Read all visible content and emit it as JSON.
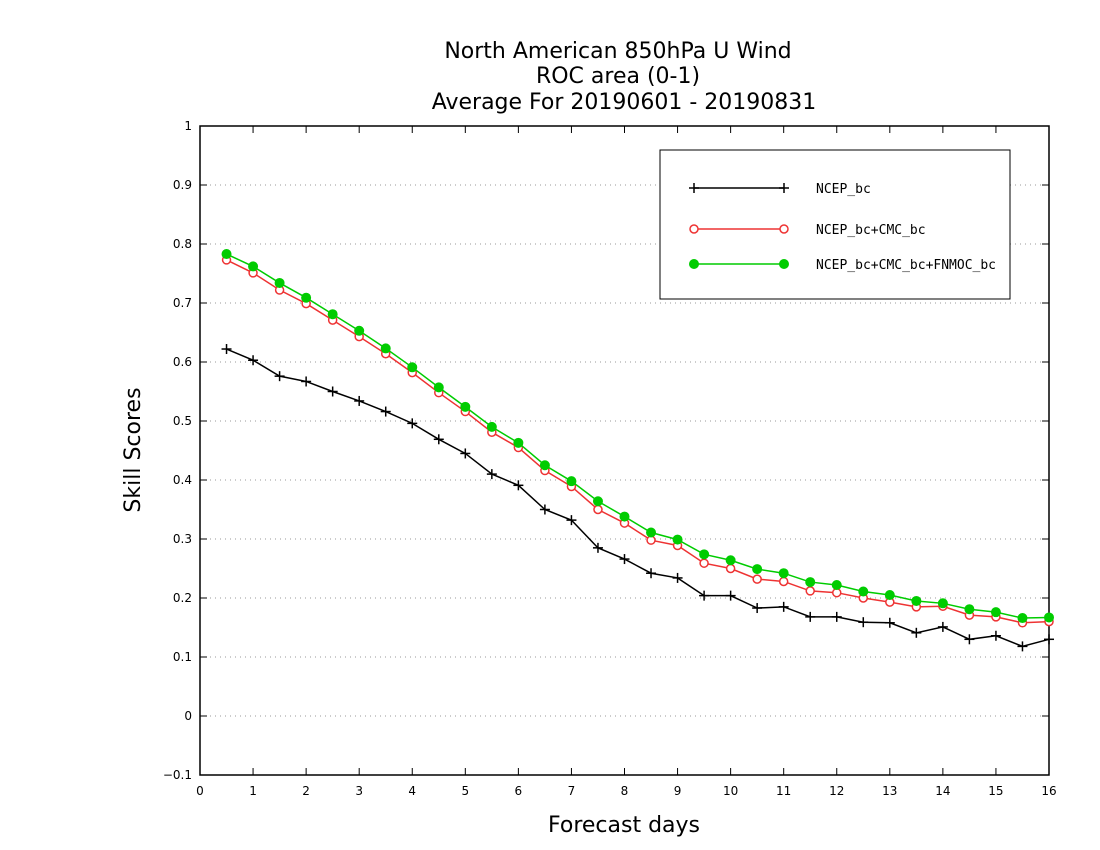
{
  "chart_data": {
    "type": "line",
    "title": [
      "North American 850hPa U Wind",
      "ROC area (0-1)",
      "Average For 20190601 - 20190831"
    ],
    "xlabel": "Forecast days",
    "ylabel": "Skill Scores",
    "xlim": [
      0,
      16
    ],
    "ylim": [
      -0.1,
      1
    ],
    "xticks": [
      "0",
      "1",
      "2",
      "3",
      "4",
      "5",
      "6",
      "7",
      "8",
      "9",
      "10",
      "11",
      "12",
      "13",
      "14",
      "15",
      "16"
    ],
    "yticks": [
      "−0.1",
      "0",
      "0.1",
      "0.2",
      "0.3",
      "0.4",
      "0.5",
      "0.6",
      "0.7",
      "0.8",
      "0.9",
      "1"
    ],
    "grid": "horizontal-dotted",
    "legend_position": "top-right",
    "x": [
      0.5,
      1,
      1.5,
      2,
      2.5,
      3,
      3.5,
      4,
      4.5,
      5,
      5.5,
      6,
      6.5,
      7,
      7.5,
      8,
      8.5,
      9,
      9.5,
      10,
      10.5,
      11,
      11.5,
      12,
      12.5,
      13,
      13.5,
      14,
      14.5,
      15,
      15.5,
      16
    ],
    "series": [
      {
        "name": "NCEP_bc",
        "color": "#000000",
        "marker": "plus",
        "values": [
          0.622,
          0.603,
          0.576,
          0.567,
          0.55,
          0.534,
          0.516,
          0.496,
          0.469,
          0.445,
          0.41,
          0.391,
          0.35,
          0.332,
          0.285,
          0.266,
          0.242,
          0.234,
          0.204,
          0.204,
          0.183,
          0.185,
          0.168,
          0.168,
          0.159,
          0.158,
          0.141,
          0.151,
          0.13,
          0.136,
          0.118,
          0.13
        ]
      },
      {
        "name": "NCEP_bc+CMC_bc",
        "color": "#ee3333",
        "marker": "open-circle",
        "values": [
          0.773,
          0.751,
          0.722,
          0.699,
          0.671,
          0.643,
          0.614,
          0.582,
          0.548,
          0.516,
          0.481,
          0.455,
          0.416,
          0.389,
          0.35,
          0.327,
          0.298,
          0.289,
          0.259,
          0.25,
          0.232,
          0.228,
          0.212,
          0.209,
          0.2,
          0.193,
          0.185,
          0.186,
          0.171,
          0.168,
          0.158,
          0.16
        ]
      },
      {
        "name": "NCEP_bc+CMC_bc+FNMOC_bc",
        "color": "#00cc00",
        "marker": "filled-circle",
        "values": [
          0.783,
          0.762,
          0.734,
          0.709,
          0.681,
          0.653,
          0.623,
          0.591,
          0.557,
          0.524,
          0.49,
          0.463,
          0.425,
          0.398,
          0.364,
          0.338,
          0.311,
          0.299,
          0.274,
          0.264,
          0.249,
          0.242,
          0.227,
          0.222,
          0.211,
          0.205,
          0.195,
          0.191,
          0.181,
          0.176,
          0.166,
          0.167
        ]
      }
    ]
  }
}
